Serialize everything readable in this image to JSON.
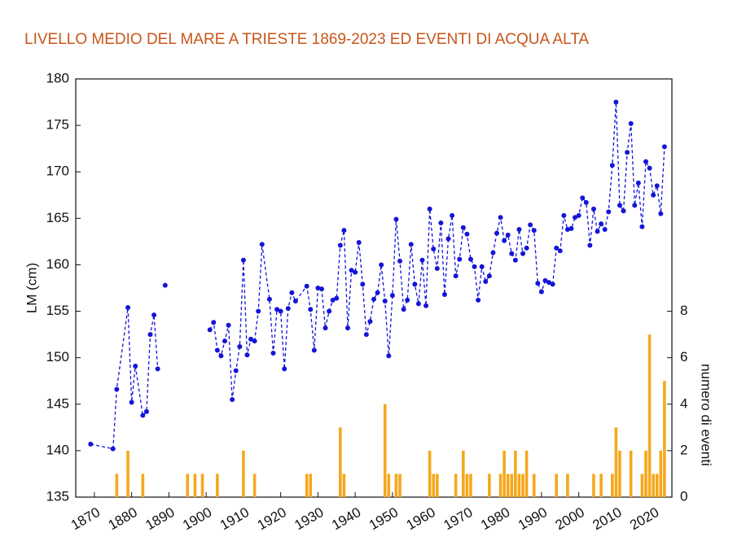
{
  "chart_data": {
    "type": "combo",
    "title": "LIVELLO MEDIO DEL MARE A TRIESTE 1869-2023 ED EVENTI DI ACQUA ALTA",
    "y_label": "LM (cm)",
    "y2_label": "numero di eventi",
    "xlim": [
      1865,
      2025
    ],
    "xticks": [
      1870,
      1880,
      1890,
      1900,
      1910,
      1920,
      1930,
      1940,
      1950,
      1960,
      1970,
      1980,
      1990,
      2000,
      2010,
      2020
    ],
    "ylim": [
      135,
      180
    ],
    "yticks": [
      135,
      140,
      145,
      150,
      155,
      160,
      165,
      170,
      175,
      180
    ],
    "y2lim": [
      0,
      18
    ],
    "y2ticks": [
      0,
      2,
      4,
      6,
      8
    ],
    "series": [
      {
        "type": "line",
        "color": "#1414d8",
        "x": [
          1869,
          1875,
          1876,
          1879,
          1880,
          1881,
          1883,
          1884,
          1885,
          1886,
          1887,
          1888,
          1889,
          1900,
          1901,
          1902,
          1903,
          1904,
          1905,
          1906,
          1907,
          1908,
          1909,
          1910,
          1911,
          1912,
          1913,
          1914,
          1915,
          1917,
          1918,
          1919,
          1920,
          1921,
          1922,
          1923,
          1924,
          1927,
          1928,
          1929,
          1930,
          1931,
          1932,
          1933,
          1934,
          1935,
          1936,
          1937,
          1938,
          1939,
          1940,
          1941,
          1942,
          1943,
          1944,
          1945,
          1946,
          1947,
          1948,
          1949,
          1950,
          1951,
          1952,
          1953,
          1954,
          1955,
          1956,
          1957,
          1958,
          1959,
          1960,
          1961,
          1962,
          1963,
          1964,
          1965,
          1966,
          1967,
          1968,
          1969,
          1970,
          1971,
          1972,
          1973,
          1974,
          1975,
          1976,
          1977,
          1978,
          1979,
          1980,
          1981,
          1982,
          1983,
          1984,
          1985,
          1986,
          1987,
          1988,
          1989,
          1990,
          1991,
          1992,
          1993,
          1994,
          1995,
          1996,
          1997,
          1998,
          1999,
          2000,
          2001,
          2002,
          2003,
          2004,
          2005,
          2006,
          2007,
          2008,
          2009,
          2010,
          2011,
          2012,
          2013,
          2014,
          2015,
          2016,
          2017,
          2018,
          2019,
          2020,
          2021,
          2022,
          2023
        ],
        "values": [
          140.7,
          140.2,
          146.6,
          155.4,
          145.2,
          149.1,
          143.8,
          144.2,
          152.5,
          154.6,
          148.8,
          null,
          157.8,
          null,
          153.0,
          153.8,
          150.8,
          150.2,
          151.8,
          153.5,
          145.5,
          148.6,
          151.2,
          160.5,
          150.3,
          152.0,
          151.8,
          155.0,
          162.2,
          156.3,
          150.5,
          155.2,
          155.0,
          148.8,
          155.3,
          157.0,
          156.1,
          157.7,
          155.2,
          150.8,
          157.5,
          157.4,
          153.2,
          155.0,
          156.2,
          156.4,
          162.1,
          163.7,
          153.2,
          159.4,
          159.2,
          162.4,
          157.9,
          152.5,
          153.9,
          156.3,
          157.0,
          160.0,
          156.1,
          150.2,
          156.7,
          164.9,
          160.4,
          155.2,
          156.2,
          162.2,
          157.9,
          155.8,
          160.5,
          155.6,
          166.0,
          161.7,
          159.6,
          164.5,
          156.8,
          162.8,
          165.3,
          158.8,
          160.6,
          164.0,
          163.3,
          160.6,
          159.8,
          156.2,
          159.8,
          158.2,
          158.8,
          161.3,
          163.4,
          165.1,
          162.6,
          163.2,
          161.2,
          160.5,
          163.8,
          161.2,
          161.8,
          164.3,
          163.7,
          158.0,
          157.1,
          158.3,
          158.1,
          157.9,
          161.8,
          161.5,
          165.3,
          163.8,
          163.9,
          165.1,
          165.3,
          167.2,
          166.7,
          162.1,
          166.0,
          163.6,
          164.4,
          163.8,
          165.7,
          170.7,
          177.5,
          166.4,
          165.8,
          172.1,
          175.2,
          166.4,
          168.8,
          164.1,
          171.1,
          170.4,
          167.5,
          168.5,
          165.5,
          172.7
        ]
      },
      {
        "type": "bar",
        "axis": "y2",
        "color": "#f5a81c",
        "x": [
          1876,
          1879,
          1883,
          1895,
          1897,
          1899,
          1903,
          1910,
          1913,
          1927,
          1928,
          1936,
          1937,
          1948,
          1949,
          1951,
          1952,
          1960,
          1961,
          1962,
          1967,
          1969,
          1970,
          1971,
          1976,
          1979,
          1980,
          1981,
          1982,
          1983,
          1984,
          1985,
          1986,
          1988,
          1994,
          1997,
          2004,
          2006,
          2009,
          2010,
          2011,
          2014,
          2017,
          2018,
          2019,
          2020,
          2021,
          2022,
          2023
        ],
        "values": [
          1,
          2,
          1,
          1,
          1,
          1,
          1,
          2,
          1,
          1,
          1,
          3,
          1,
          4,
          1,
          1,
          1,
          2,
          1,
          1,
          1,
          2,
          1,
          1,
          1,
          1,
          2,
          1,
          1,
          2,
          1,
          1,
          2,
          1,
          1,
          1,
          1,
          1,
          1,
          3,
          2,
          2,
          1,
          2,
          7,
          1,
          1,
          2,
          5
        ]
      }
    ]
  }
}
